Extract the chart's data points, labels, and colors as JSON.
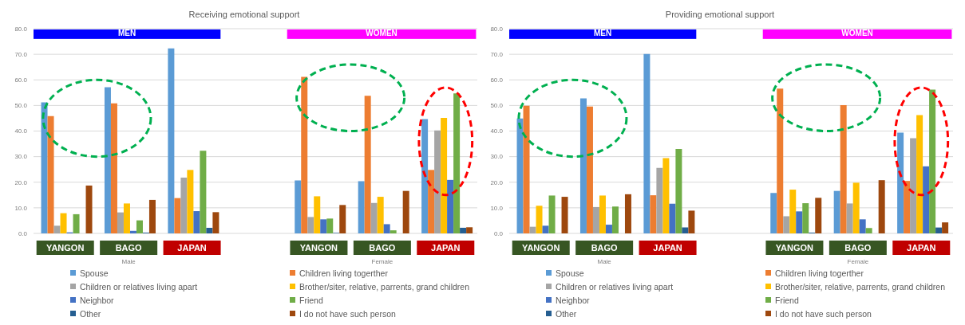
{
  "chart_data": [
    {
      "type": "bar",
      "title": "Receiving emotional support",
      "categories": [
        "YANGON",
        "BAGO",
        "JAPAN",
        null,
        "YANGON",
        "BAGO",
        "JAPAN"
      ],
      "series": [
        {
          "name": "Spouse",
          "color": "#5b9bd5",
          "values": [
            51.2,
            57.1,
            72.3,
            null,
            20.7,
            20.4,
            44.7
          ]
        },
        {
          "name": "Children living togerther",
          "color": "#ed7d31",
          "values": [
            45.8,
            50.8,
            13.8,
            null,
            61.2,
            53.8,
            24.8
          ]
        },
        {
          "name": "Children or relatives living apart",
          "color": "#a5a5a5",
          "values": [
            3.0,
            8.2,
            21.8,
            null,
            6.4,
            11.9,
            40.2
          ]
        },
        {
          "name": "Brother/siter, relative, parrents, grand children",
          "color": "#ffc000",
          "values": [
            7.9,
            11.7,
            24.8,
            null,
            14.5,
            14.3,
            45.1
          ]
        },
        {
          "name": "Neighbor",
          "color": "#4472c4",
          "values": [
            0.4,
            1.0,
            8.7,
            null,
            5.5,
            3.6,
            20.9
          ]
        },
        {
          "name": "Friend",
          "color": "#70ad47",
          "values": [
            7.5,
            5.1,
            32.3,
            null,
            5.8,
            1.2,
            54.7
          ]
        },
        {
          "name": "Other",
          "color": "#255e91",
          "values": [
            0,
            0.3,
            2.2,
            null,
            0.2,
            0,
            2.2
          ]
        },
        {
          "name": "I do not have such person",
          "color": "#9e480e",
          "values": [
            18.7,
            13.1,
            8.3,
            null,
            11.1,
            16.6,
            2.4
          ]
        }
      ],
      "ylim": [
        0,
        80
      ],
      "yticks": [
        {
          "value": 0,
          "label": "0.0"
        },
        {
          "value": 10,
          "label": "10.0"
        },
        {
          "value": 20,
          "label": "20.0"
        },
        {
          "value": 30,
          "label": "30.0"
        },
        {
          "value": 40,
          "label": "40.0"
        },
        {
          "value": 50,
          "label": "50.0"
        },
        {
          "value": 60,
          "label": "60.0"
        },
        {
          "value": 70,
          "label": "70.0"
        },
        {
          "value": 80,
          "label": "80.0"
        }
      ],
      "grid": "y",
      "legend": "bottom",
      "annotations": [
        "MEN",
        "WOMEN",
        "Male",
        "Female"
      ]
    },
    {
      "type": "bar",
      "title": "Providing emotional support",
      "categories": [
        "YANGON",
        "BAGO",
        "JAPAN",
        null,
        "YANGON",
        "BAGO",
        "JAPAN"
      ],
      "series": [
        {
          "name": "Spouse",
          "color": "#5b9bd5",
          "values": [
            44.9,
            52.8,
            70.1,
            null,
            15.8,
            16.6,
            39.4
          ]
        },
        {
          "name": "Children living togerther",
          "color": "#ed7d31",
          "values": [
            49.9,
            49.6,
            14.9,
            null,
            56.6,
            50.1,
            20.5
          ]
        },
        {
          "name": "Children or relatives living apart",
          "color": "#a5a5a5",
          "values": [
            2.6,
            10.3,
            25.6,
            null,
            6.7,
            11.7,
            37.2
          ]
        },
        {
          "name": "Brother/siter, relative, parrents, grand children",
          "color": "#ffc000",
          "values": [
            10.8,
            14.8,
            29.4,
            null,
            17.1,
            19.8,
            46.2
          ]
        },
        {
          "name": "Neighbor",
          "color": "#4472c4",
          "values": [
            3.0,
            3.4,
            11.6,
            null,
            8.6,
            5.5,
            26.2
          ]
        },
        {
          "name": "Friend",
          "color": "#70ad47",
          "values": [
            14.8,
            10.5,
            33.0,
            null,
            11.8,
            2.1,
            56.2
          ]
        },
        {
          "name": "Other",
          "color": "#255e91",
          "values": [
            0,
            0,
            2.3,
            null,
            0.3,
            0,
            2.3
          ]
        },
        {
          "name": "I do not have such person",
          "color": "#9e480e",
          "values": [
            14.3,
            15.3,
            8.9,
            null,
            13.9,
            20.8,
            4.3
          ]
        }
      ],
      "ylim": [
        0,
        80
      ],
      "yticks": [
        {
          "value": 0,
          "label": "0.0"
        },
        {
          "value": 10,
          "label": "10.0"
        },
        {
          "value": 20,
          "label": "20.0"
        },
        {
          "value": 30,
          "label": "30.0"
        },
        {
          "value": 40,
          "label": "40.0"
        },
        {
          "value": 50,
          "label": "50.0"
        },
        {
          "value": 60,
          "label": "60.0"
        },
        {
          "value": 70,
          "label": "70.0"
        },
        {
          "value": 80,
          "label": "80.0"
        }
      ],
      "grid": "y",
      "legend": "bottom",
      "annotations": [
        "MEN",
        "WOMEN",
        "Male",
        "Female"
      ]
    }
  ]
}
